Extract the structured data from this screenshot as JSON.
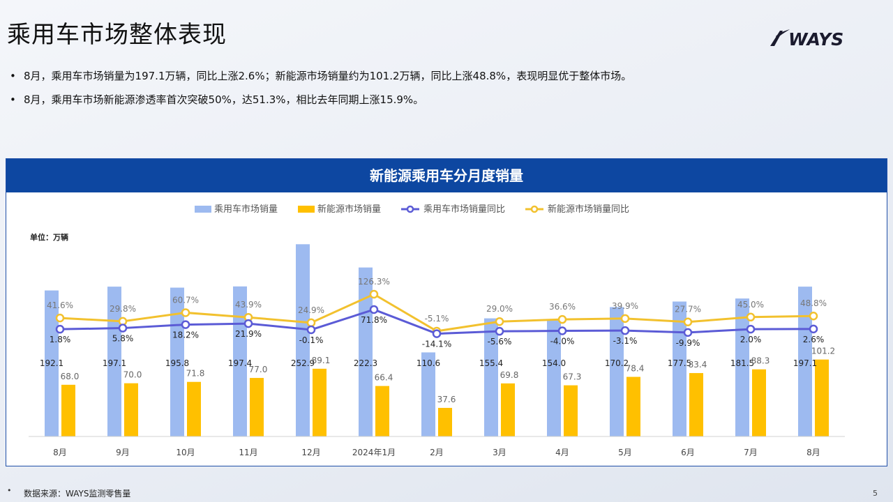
{
  "page": {
    "title": "乘用车市场整体表现",
    "logo_text": "WAYS",
    "bullets": [
      "8月，乘用车市场销量为197.1万辆，同比上涨2.6%；新能源市场销量约为101.2万辆，同比上涨48.8%，表现明显优于整体市场。",
      "8月，乘用车市场新能源渗透率首次突破50%，达51.3%，相比去年同期上涨15.9%。"
    ],
    "bullet_symbol": "•",
    "footer_bullet": "•",
    "source": "数据来源：WAYS监测零售量",
    "page_number": "5"
  },
  "colors": {
    "header_bg": "#0d47a1",
    "bar_total": "#9dbaf0",
    "bar_nev": "#ffc000",
    "line_total": "#5b5bd6",
    "line_nev": "#f2c12e"
  },
  "chart_data": {
    "type": "bar",
    "title": "新能源乘用车分月度销量",
    "unit_label": "单位：万辆",
    "categories": [
      "8月",
      "9月",
      "10月",
      "11月",
      "12月",
      "2024年1月",
      "2月",
      "3月",
      "4月",
      "5月",
      "6月",
      "7月",
      "8月"
    ],
    "series": [
      {
        "name": "乘用车市场销量",
        "kind": "bar",
        "axis": "left",
        "values": [
          192.1,
          197.1,
          195.8,
          197.4,
          252.9,
          222.3,
          110.6,
          155.4,
          154.0,
          170.2,
          177.5,
          181.5,
          197.1
        ]
      },
      {
        "name": "新能源市场销量",
        "kind": "bar",
        "axis": "left",
        "values": [
          68.0,
          70.0,
          71.8,
          77.0,
          89.1,
          66.4,
          37.6,
          69.8,
          67.3,
          78.4,
          83.4,
          88.3,
          101.2
        ]
      },
      {
        "name": "乘用车市场销量同比",
        "kind": "line",
        "axis": "right",
        "values": [
          1.8,
          5.8,
          18.2,
          21.9,
          -0.1,
          71.8,
          -14.1,
          -5.6,
          -4.0,
          -3.1,
          -9.9,
          2.0,
          2.6
        ],
        "labels": [
          "1.8%",
          "5.8%",
          "18.2%",
          "21.9%",
          "-0.1%",
          "71.8%",
          "-14.1%",
          "-5.6%",
          "-4.0%",
          "-3.1%",
          "-9.9%",
          "2.0%",
          "2.6%"
        ]
      },
      {
        "name": "新能源市场销量同比",
        "kind": "line",
        "axis": "right",
        "values": [
          41.6,
          29.8,
          60.7,
          43.9,
          24.9,
          126.3,
          -5.1,
          29.0,
          36.6,
          39.9,
          27.7,
          45.0,
          48.8
        ],
        "labels": [
          "41.6%",
          "29.8%",
          "60.7%",
          "43.9%",
          "24.9%",
          "126.3%",
          "-5.1%",
          "29.0%",
          "36.6%",
          "39.9%",
          "27.7%",
          "45.0%",
          "48.8%"
        ]
      }
    ],
    "bar_value_labels": {
      "total": [
        "192.1",
        "197.1",
        "195.8",
        "197.4",
        "252.9",
        "222.3",
        "110.6",
        "155.4",
        "154.0",
        "170.2",
        "177.5",
        "181.5",
        "197.1"
      ],
      "nev": [
        "68.0",
        "70.0",
        "71.8",
        "77.0",
        "89.1",
        "66.4",
        "37.6",
        "69.8",
        "67.3",
        "78.4",
        "83.4",
        "88.3",
        "101.2"
      ]
    },
    "ylim_left": [
      0,
      255
    ],
    "ylim_right": [
      -380,
      310
    ],
    "legend_position": "top",
    "grid": false
  }
}
